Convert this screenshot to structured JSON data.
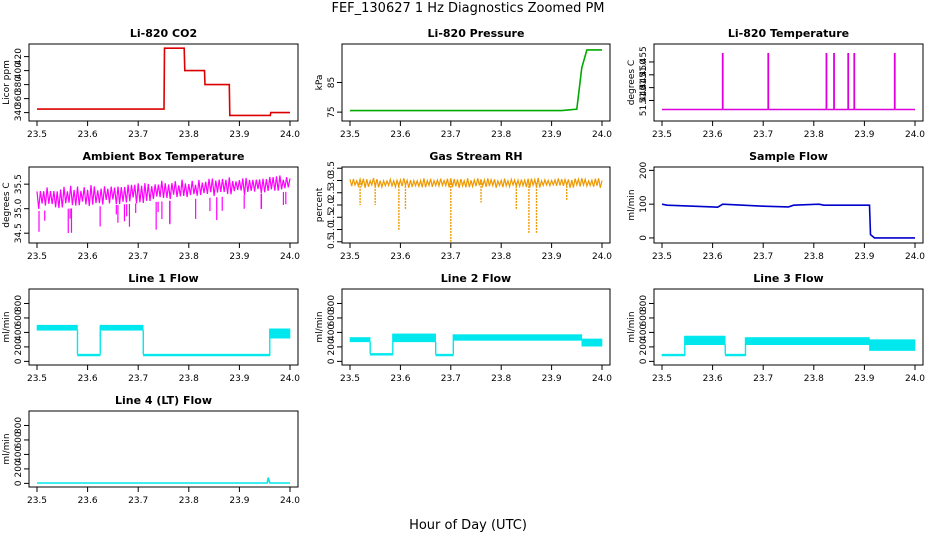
{
  "figure": {
    "title": "FEF_130627  1 Hz Diagnostics Zoomed PM",
    "xlabel": "Hour of Day (UTC)"
  },
  "chart_data": [
    {
      "type": "line",
      "title": "Li-820 CO2",
      "ylabel": "Licor ppm",
      "color": "#dd0000",
      "xlim": [
        23.5,
        24.0
      ],
      "ylim": [
        328,
        438
      ],
      "xticks": [
        "23.5",
        "23.6",
        "23.7",
        "23.8",
        "23.9",
        "24.0"
      ],
      "yticks": [
        340,
        360,
        380,
        400,
        420
      ],
      "x": [
        23.5,
        23.7,
        23.751,
        23.752,
        23.791,
        23.792,
        23.831,
        23.832,
        23.88,
        23.881,
        23.961,
        23.962,
        24.0
      ],
      "values": [
        345,
        345,
        345,
        432,
        432,
        400,
        400,
        380,
        380,
        336,
        336,
        340,
        340
      ]
    },
    {
      "type": "line",
      "title": "Li-820 Pressure",
      "ylabel": "kPa",
      "color": "#00aa00",
      "xlim": [
        23.5,
        24.0
      ],
      "ylim": [
        72,
        98
      ],
      "xticks": [
        "23.5",
        "23.6",
        "23.7",
        "23.8",
        "23.9",
        "24.0"
      ],
      "yticks": [
        75,
        85
      ],
      "x": [
        23.5,
        23.92,
        23.95,
        23.96,
        23.97,
        24.0
      ],
      "values": [
        75.5,
        75.5,
        76,
        90,
        96,
        96
      ]
    },
    {
      "type": "line",
      "title": "Li-820 Temperature",
      "ylabel": "degrees C",
      "color": "#dd00dd",
      "xlim": [
        23.5,
        24.0
      ],
      "ylim": [
        51.432,
        51.462
      ],
      "xticks": [
        "23.5",
        "23.6",
        "23.7",
        "23.8",
        "23.9",
        "24.0"
      ],
      "yticks": [
        "51.440",
        "51.445",
        "51.450",
        "51.455"
      ],
      "baseline": 51.4365,
      "spike_top": 51.4585,
      "spikes": [
        23.62,
        23.71,
        23.825,
        23.84,
        23.868,
        23.88,
        23.96
      ]
    },
    {
      "type": "line",
      "title": "Ambient Box Temperature",
      "ylabel": "degrees C",
      "color": "#ff00ff",
      "xlim": [
        23.5,
        24.0
      ],
      "ylim": [
        34.3,
        35.85
      ],
      "xticks": [
        "23.5",
        "23.6",
        "23.7",
        "23.8",
        "23.9",
        "24.0"
      ],
      "yticks": [
        "34.5",
        "35.0",
        "35.5"
      ],
      "band": {
        "x": [
          23.5,
          24.0
        ],
        "low": [
          34.95,
          35.35
        ],
        "high": [
          35.45,
          35.7
        ]
      }
    },
    {
      "type": "line",
      "title": "Gas Stream RH",
      "ylabel": "percent",
      "color": "#ee9900",
      "xlim": [
        23.5,
        24.0
      ],
      "ylim": [
        0.45,
        3.55
      ],
      "xticks": [
        "23.5",
        "23.6",
        "23.7",
        "23.8",
        "23.9",
        "24.0"
      ],
      "yticks": [
        "0.5",
        "1.0",
        "1.5",
        "2.0",
        "2.5",
        "3.0",
        "3.5"
      ],
      "band": {
        "x": [
          23.5,
          24.0
        ],
        "low": [
          2.7,
          2.7
        ],
        "high": [
          3.1,
          3.1
        ]
      },
      "dips": [
        {
          "x": 23.52,
          "value": 2.0
        },
        {
          "x": 23.55,
          "value": 2.0
        },
        {
          "x": 23.597,
          "value": 0.95
        },
        {
          "x": 23.61,
          "value": 1.8
        },
        {
          "x": 23.7,
          "value": 0.5
        },
        {
          "x": 23.76,
          "value": 2.1
        },
        {
          "x": 23.83,
          "value": 1.8
        },
        {
          "x": 23.855,
          "value": 0.85
        },
        {
          "x": 23.87,
          "value": 0.85
        },
        {
          "x": 23.93,
          "value": 2.2
        }
      ]
    },
    {
      "type": "line",
      "title": "Sample Flow",
      "ylabel": "ml/min",
      "color": "#0000cc",
      "xlim": [
        23.5,
        24.0
      ],
      "ylim": [
        -15,
        210
      ],
      "xticks": [
        "23.5",
        "23.6",
        "23.7",
        "23.8",
        "23.9",
        "24.0"
      ],
      "yticks": [
        0,
        100,
        200
      ],
      "x": [
        23.5,
        23.51,
        23.6,
        23.61,
        23.62,
        23.7,
        23.75,
        23.76,
        23.81,
        23.82,
        23.91,
        23.912,
        23.92,
        24.0
      ],
      "values": [
        100,
        97,
        92,
        91,
        100,
        94,
        92,
        97,
        100,
        97,
        97,
        10,
        0,
        0
      ]
    },
    {
      "type": "line",
      "title": "Line 1 Flow",
      "ylabel": "ml/min",
      "color": "#00e8ee",
      "xlim": [
        23.5,
        24.0
      ],
      "ylim": [
        -50,
        1000
      ],
      "xticks": [
        "23.5",
        "23.6",
        "23.7",
        "23.8",
        "23.9",
        "24.0"
      ],
      "yticks": [
        0,
        200,
        400,
        600,
        800
      ],
      "segments": [
        {
          "x": [
            23.5,
            23.58
          ],
          "low": 430,
          "high": 500
        },
        {
          "x": [
            23.58,
            23.625
          ],
          "low": 100,
          "high": 100
        },
        {
          "x": [
            23.625,
            23.71
          ],
          "low": 430,
          "high": 500
        },
        {
          "x": [
            23.71,
            23.96
          ],
          "low": 80,
          "high": 100
        },
        {
          "x": [
            23.96,
            24.0
          ],
          "low": 320,
          "high": 450
        }
      ]
    },
    {
      "type": "line",
      "title": "Line 2 Flow",
      "ylabel": "ml/min",
      "color": "#00e8ee",
      "xlim": [
        23.5,
        24.0
      ],
      "ylim": [
        -50,
        1000
      ],
      "xticks": [
        "23.5",
        "23.6",
        "23.7",
        "23.8",
        "23.9",
        "24.0"
      ],
      "yticks": [
        0,
        200,
        400,
        600,
        800
      ],
      "segments": [
        {
          "x": [
            23.5,
            23.54
          ],
          "low": 270,
          "high": 330
        },
        {
          "x": [
            23.54,
            23.585
          ],
          "low": 110,
          "high": 110
        },
        {
          "x": [
            23.585,
            23.67
          ],
          "low": 270,
          "high": 380
        },
        {
          "x": [
            23.67,
            23.705
          ],
          "low": 100,
          "high": 100
        },
        {
          "x": [
            23.705,
            23.96
          ],
          "low": 290,
          "high": 370
        },
        {
          "x": [
            23.96,
            24.0
          ],
          "low": 210,
          "high": 310
        }
      ]
    },
    {
      "type": "line",
      "title": "Line 3 Flow",
      "ylabel": "ml/min",
      "color": "#00e8ee",
      "xlim": [
        23.5,
        24.0
      ],
      "ylim": [
        -50,
        1000
      ],
      "xticks": [
        "23.5",
        "23.6",
        "23.7",
        "23.8",
        "23.9",
        "24.0"
      ],
      "yticks": [
        0,
        200,
        400,
        600,
        800
      ],
      "segments": [
        {
          "x": [
            23.5,
            23.545
          ],
          "low": 80,
          "high": 100
        },
        {
          "x": [
            23.545,
            23.625
          ],
          "low": 230,
          "high": 350
        },
        {
          "x": [
            23.625,
            23.665
          ],
          "low": 80,
          "high": 100
        },
        {
          "x": [
            23.665,
            23.91
          ],
          "low": 230,
          "high": 330
        },
        {
          "x": [
            23.91,
            24.0
          ],
          "low": 150,
          "high": 300
        }
      ]
    },
    {
      "type": "line",
      "title": "Line 4 (LT) Flow",
      "ylabel": "ml/min",
      "color": "#00e8ee",
      "xlim": [
        23.5,
        24.0
      ],
      "ylim": [
        -50,
        1000
      ],
      "xticks": [
        "23.5",
        "23.6",
        "23.7",
        "23.8",
        "23.9",
        "24.0"
      ],
      "yticks": [
        0,
        200,
        400,
        600,
        800
      ],
      "x": [
        23.5,
        23.955,
        23.957,
        23.96,
        23.962,
        24.0
      ],
      "values": [
        5,
        5,
        80,
        5,
        5,
        5
      ]
    }
  ]
}
